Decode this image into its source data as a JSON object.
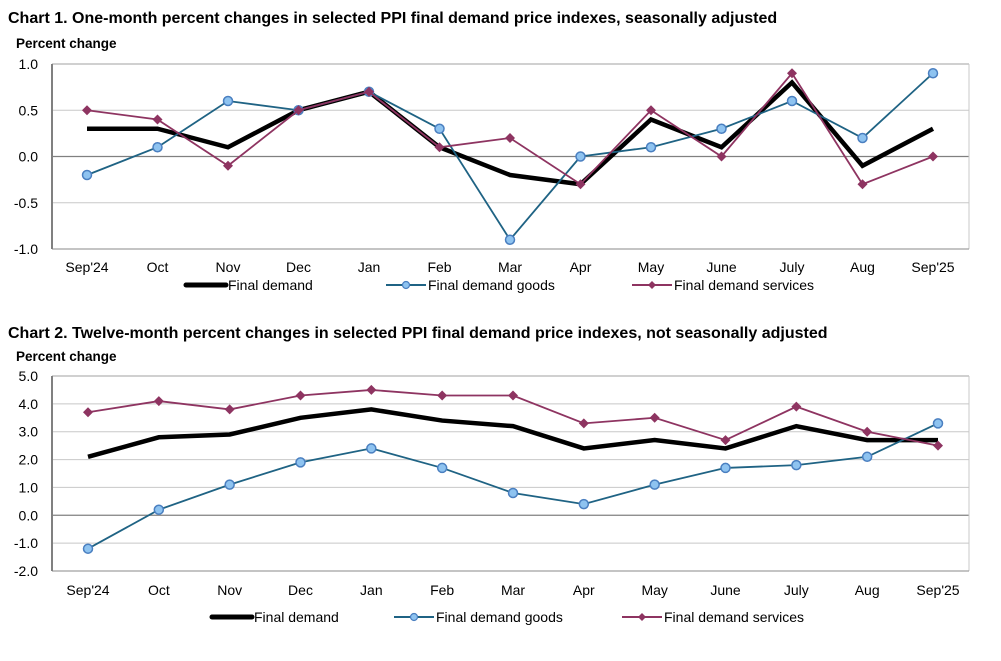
{
  "chart_data": [
    {
      "type": "line",
      "title": "Chart 1. One-month percent changes in selected PPI final demand price indexes, seasonally adjusted",
      "xlabel": "",
      "ylabel": "Percent change",
      "categories": [
        "Sep'24",
        "Oct",
        "Nov",
        "Dec",
        "Jan",
        "Feb",
        "Mar",
        "Apr",
        "May",
        "June",
        "July",
        "Aug",
        "Sep'25"
      ],
      "ylim": [
        -1.0,
        1.0
      ],
      "yticks": [
        -1.0,
        -0.5,
        0.0,
        0.5,
        1.0
      ],
      "ytick_labels": [
        "-1.0",
        "-0.5",
        "0.0",
        "0.5",
        "1.0"
      ],
      "grid": true,
      "legend_position": "bottom",
      "series": [
        {
          "name": "Final demand",
          "color": "#000000",
          "marker": "none",
          "values": [
            0.3,
            0.3,
            0.1,
            0.5,
            0.7,
            0.1,
            -0.2,
            -0.3,
            0.4,
            0.1,
            0.8,
            -0.1,
            0.3
          ]
        },
        {
          "name": "Final demand goods",
          "color": "#1F6384",
          "marker": "circle",
          "marker_fill": "#8EC3F0",
          "values": [
            -0.2,
            0.1,
            0.6,
            0.5,
            0.7,
            0.3,
            -0.9,
            0.0,
            0.1,
            0.3,
            0.6,
            0.2,
            0.9
          ]
        },
        {
          "name": "Final demand services",
          "color": "#8E3461",
          "marker": "diamond",
          "values": [
            0.5,
            0.4,
            -0.1,
            0.5,
            0.7,
            0.1,
            0.2,
            -0.3,
            0.5,
            0.0,
            0.9,
            -0.3,
            0.0
          ]
        }
      ]
    },
    {
      "type": "line",
      "title": "Chart 2. Twelve-month percent changes in selected PPI final demand price indexes, not seasonally adjusted",
      "xlabel": "",
      "ylabel": "Percent change",
      "categories": [
        "Sep'24",
        "Oct",
        "Nov",
        "Dec",
        "Jan",
        "Feb",
        "Mar",
        "Apr",
        "May",
        "June",
        "July",
        "Aug",
        "Sep'25"
      ],
      "ylim": [
        -2.0,
        5.0
      ],
      "yticks": [
        -2.0,
        -1.0,
        0.0,
        1.0,
        2.0,
        3.0,
        4.0,
        5.0
      ],
      "ytick_labels": [
        "-2.0",
        "-1.0",
        "0.0",
        "1.0",
        "2.0",
        "3.0",
        "4.0",
        "5.0"
      ],
      "grid": true,
      "legend_position": "bottom",
      "series": [
        {
          "name": "Final demand",
          "color": "#000000",
          "marker": "none",
          "values": [
            2.1,
            2.8,
            2.9,
            3.5,
            3.8,
            3.4,
            3.2,
            2.4,
            2.7,
            2.4,
            3.2,
            2.7,
            2.7
          ]
        },
        {
          "name": "Final demand goods",
          "color": "#1F6384",
          "marker": "circle",
          "marker_fill": "#8EC3F0",
          "values": [
            -1.2,
            0.2,
            1.1,
            1.9,
            2.4,
            1.7,
            0.8,
            0.4,
            1.1,
            1.7,
            1.8,
            2.1,
            3.3
          ]
        },
        {
          "name": "Final demand services",
          "color": "#8E3461",
          "marker": "diamond",
          "values": [
            3.7,
            4.1,
            3.8,
            4.3,
            4.5,
            4.3,
            4.3,
            3.3,
            3.5,
            2.7,
            3.9,
            3.0,
            2.5
          ]
        }
      ]
    }
  ]
}
